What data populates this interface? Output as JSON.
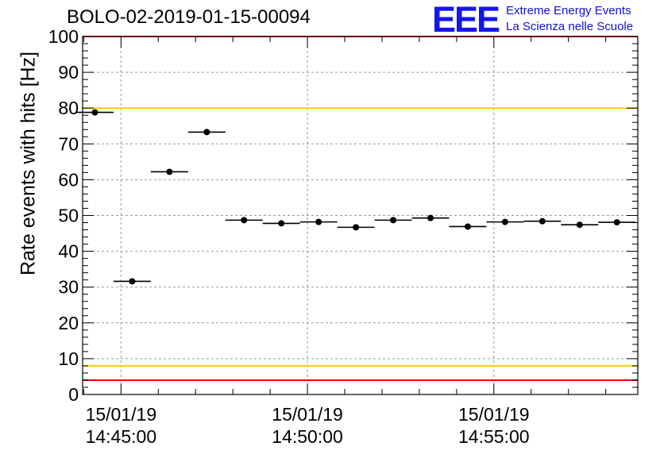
{
  "header": {
    "title": "BOLO-02-2019-01-15-00094",
    "logo_text": "EEE",
    "logo_line1": "Extreme Energy Events",
    "logo_line2": "La Scienza nelle Scuole"
  },
  "chart_data": {
    "type": "scatter",
    "title": "BOLO-02-2019-01-15-00094",
    "ylabel": "Rate events with hits [Hz]",
    "xlabel": "",
    "ylim": [
      0,
      100
    ],
    "yticks": [
      0,
      10,
      20,
      30,
      40,
      50,
      60,
      70,
      80,
      90,
      100
    ],
    "x_axis": "time (minutes since 14:45:00)",
    "xlim": [
      -1.03,
      13.86
    ],
    "xtick_labels": [
      {
        "date": "15/01/19",
        "time": "14:45:00",
        "value": 0
      },
      {
        "date": "15/01/19",
        "time": "14:50:00",
        "value": 5
      },
      {
        "date": "15/01/19",
        "time": "14:55:00",
        "value": 10
      }
    ],
    "bin_width": 1.0,
    "points": [
      {
        "x": -0.7,
        "y": 78.8
      },
      {
        "x": 0.3,
        "y": 31.6
      },
      {
        "x": 1.3,
        "y": 62.2
      },
      {
        "x": 2.3,
        "y": 73.3
      },
      {
        "x": 3.3,
        "y": 48.7
      },
      {
        "x": 4.3,
        "y": 47.8
      },
      {
        "x": 5.3,
        "y": 48.2
      },
      {
        "x": 6.3,
        "y": 46.7
      },
      {
        "x": 7.3,
        "y": 48.7
      },
      {
        "x": 8.3,
        "y": 49.3
      },
      {
        "x": 9.3,
        "y": 46.9
      },
      {
        "x": 10.3,
        "y": 48.2
      },
      {
        "x": 11.3,
        "y": 48.4
      },
      {
        "x": 12.3,
        "y": 47.4
      },
      {
        "x": 13.3,
        "y": 48.1
      }
    ],
    "reference_lines": [
      {
        "y": 80,
        "color": "#ffcc00"
      },
      {
        "y": 8,
        "color": "#ffcc00"
      },
      {
        "y": 100,
        "color": "#ff0000"
      },
      {
        "y": 4,
        "color": "#ff0000"
      }
    ],
    "grid": true
  }
}
